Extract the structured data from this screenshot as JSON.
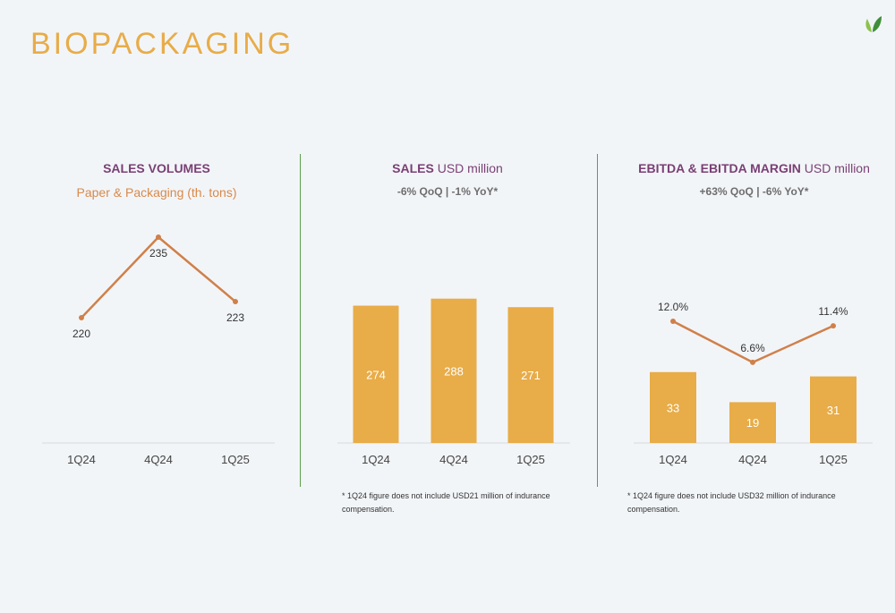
{
  "page": {
    "title": "BIOPACKAGING",
    "accent_color": "#e8ac48",
    "line_color": "#d0804a",
    "heading_color": "#7a3f74",
    "divider_color": "#5aa04a",
    "logo_icon": "leaf-icon"
  },
  "panels": [
    {
      "heading_bold": "SALES VOLUMES",
      "heading_light": "",
      "subtitle": "Paper & Packaging (th. tons)",
      "footnote_line1": "",
      "footnote_line2": ""
    },
    {
      "heading_bold": "SALES",
      "heading_light": " USD million",
      "subtitle": "-6% QoQ | -1% YoY*",
      "footnote_line1": "* 1Q24 figure does not include USD21 million of indurance",
      "footnote_line2": "compensation."
    },
    {
      "heading_bold": "EBITDA & EBITDA MARGIN",
      "heading_light": " USD million",
      "subtitle": "+63% QoQ | -6% YoY*",
      "footnote_line1": "* 1Q24 figure does not include USD32 million of indurance",
      "footnote_line2": "compensation."
    }
  ],
  "chart_data": [
    {
      "type": "line",
      "title": "SALES VOLUMES",
      "subtitle": "Paper & Packaging (th. tons)",
      "categories": [
        "1Q24",
        "4Q24",
        "1Q25"
      ],
      "series": [
        {
          "name": "",
          "values": [
            220,
            235,
            223
          ]
        }
      ],
      "data_labels": [
        "220",
        "235",
        "223"
      ]
    },
    {
      "type": "bar",
      "title": "SALES USD million",
      "subtitle": "-6% QoQ | -1% YoY*",
      "categories": [
        "1Q24",
        "4Q24",
        "1Q25"
      ],
      "values": [
        274,
        288,
        271
      ],
      "data_labels": [
        "274",
        "288",
        "271"
      ]
    },
    {
      "type": "bar",
      "title": "EBITDA & EBITDA MARGIN USD million",
      "subtitle": "+63% QoQ | -6% YoY*",
      "categories": [
        "1Q24",
        "4Q24",
        "1Q25"
      ],
      "values": [
        33,
        19,
        31
      ],
      "data_labels": [
        "33",
        "19",
        "31"
      ],
      "line_series": {
        "name": "",
        "values": [
          12.0,
          6.6,
          11.4
        ],
        "unit": "%"
      },
      "line_labels": [
        "12.0%",
        "6.6%",
        "11.4%"
      ]
    }
  ]
}
